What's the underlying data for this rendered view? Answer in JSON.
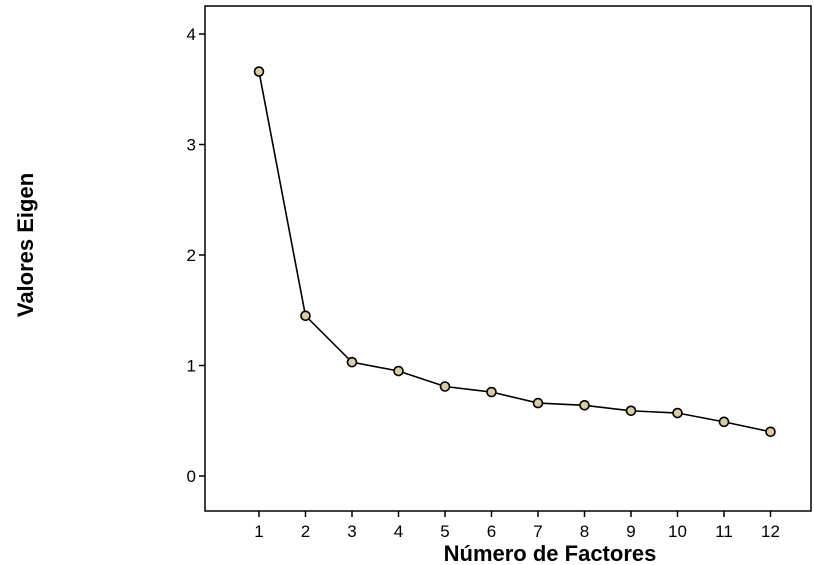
{
  "chart_data": {
    "type": "line",
    "title": "",
    "xlabel": "Número de Factores",
    "ylabel": "Valores Eigen",
    "x": [
      1,
      2,
      3,
      4,
      5,
      6,
      7,
      8,
      9,
      10,
      11,
      12
    ],
    "series": [
      {
        "values": [
          3.66,
          1.45,
          1.03,
          0.95,
          0.81,
          0.76,
          0.66,
          0.64,
          0.59,
          0.57,
          0.49,
          0.4
        ]
      }
    ],
    "x_ticks": [
      "1",
      "2",
      "3",
      "4",
      "5",
      "6",
      "7",
      "8",
      "9",
      "10",
      "11",
      "12"
    ],
    "y_ticks": [
      "0",
      "1",
      "2",
      "3",
      "4"
    ],
    "xlim": [
      0,
      13
    ],
    "ylim": [
      0,
      4
    ],
    "grid": false,
    "legend": "none",
    "colors": {
      "line": "#000000",
      "marker_fill": "#d6cca1",
      "marker_stroke": "#000000",
      "axis": "#000000"
    }
  }
}
